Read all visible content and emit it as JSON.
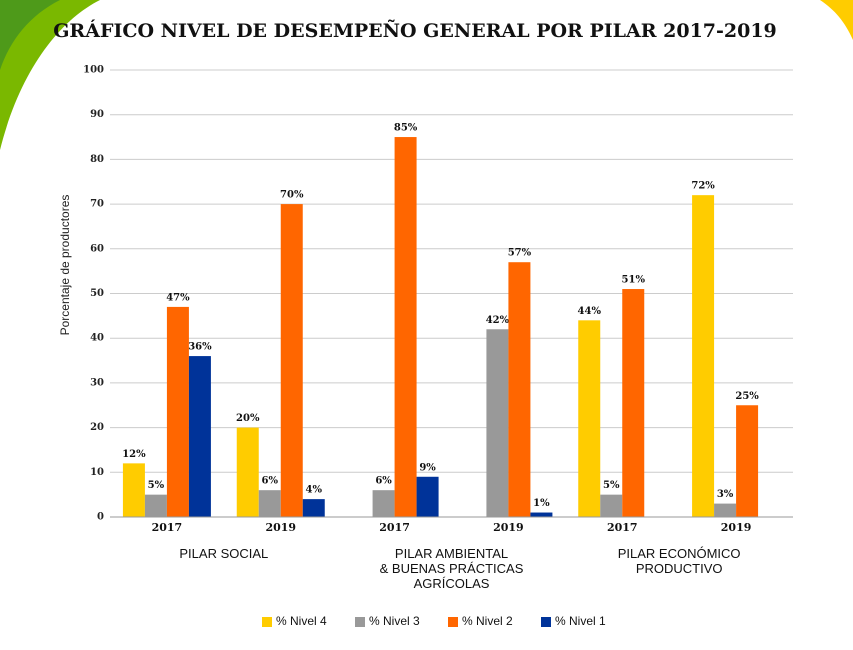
{
  "chart_data": {
    "type": "bar",
    "title": "GRÁFICO NIVEL DE DESEMPEÑO GENERAL POR PILAR 2017-2019",
    "y_label": "Porcentaje de productores",
    "groups": [
      "PILAR SOCIAL",
      "PILAR AMBIENTAL\n& BUENAS PRÁCTICAS\nAGRÍCOLAS",
      "PILAR ECONÓMICO\nPRODUCTIVO"
    ],
    "categories": [
      "2017",
      "2019",
      "2017",
      "2019",
      "2017",
      "2019"
    ],
    "series": [
      {
        "name": "% Nivel 4",
        "color": "#ffcc00",
        "values": [
          12,
          20,
          null,
          null,
          44,
          72
        ],
        "value_labels": [
          "12%",
          "20%",
          null,
          null,
          "44%",
          "72%"
        ]
      },
      {
        "name": "% Nivel 3",
        "color": "#999999",
        "values": [
          5,
          6,
          6,
          42,
          5,
          3
        ],
        "value_labels": [
          "5%",
          "6%",
          "6%",
          "42%",
          "5%",
          "3%"
        ]
      },
      {
        "name": "% Nivel 2",
        "color": "#ff6600",
        "values": [
          47,
          70,
          85,
          57,
          51,
          25
        ],
        "value_labels": [
          "47%",
          "70%",
          "85%",
          "57%",
          "51%",
          "25%"
        ]
      },
      {
        "name": "% Nivel 1",
        "color": "#003399",
        "values": [
          36,
          4,
          9,
          1,
          null,
          null
        ],
        "value_labels": [
          "36%",
          "4%",
          "9%",
          "1%",
          null,
          null
        ]
      }
    ],
    "ylim": [
      0,
      100
    ],
    "yticks": [
      0,
      10,
      20,
      30,
      40,
      50,
      60,
      70,
      80,
      90,
      100
    ],
    "grid": true
  }
}
